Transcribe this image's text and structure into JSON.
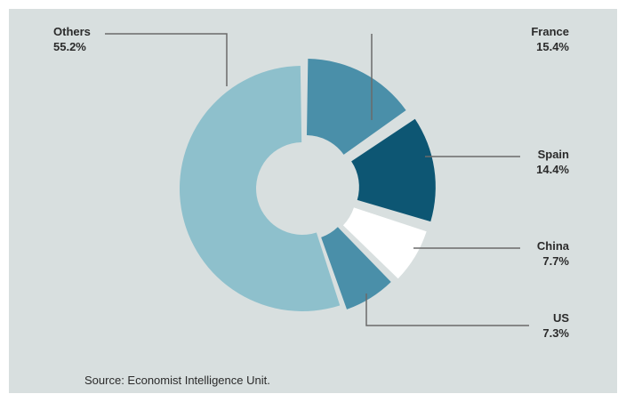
{
  "chart_data": {
    "type": "pie",
    "donut": true,
    "title": "",
    "slices": [
      {
        "label": "France",
        "pct_label": "15.4%",
        "value": 15.4,
        "color": "#4a8fa9"
      },
      {
        "label": "Spain",
        "pct_label": "14.4%",
        "value": 14.4,
        "color": "#0d5673"
      },
      {
        "label": "China",
        "pct_label": "7.7%",
        "value": 7.7,
        "color": "#ffffff"
      },
      {
        "label": "US",
        "pct_label": "7.3%",
        "value": 7.3,
        "color": "#4a8fa9"
      },
      {
        "label": "Others",
        "pct_label": "55.2%",
        "value": 55.2,
        "color": "#8ec0cc"
      }
    ],
    "legend": "callout-labels"
  },
  "source": "Source: Economist Intelligence Unit.",
  "colors": {
    "background": "#d8dfdf",
    "text": "#2b2b2b",
    "leader": "#6a6a6a"
  }
}
